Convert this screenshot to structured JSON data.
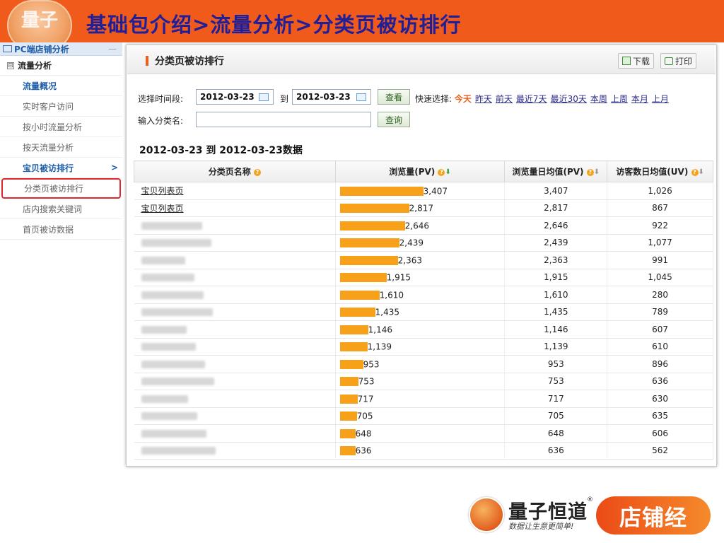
{
  "banner": {
    "title": "基础包介绍>流量分析>分类页被访排行",
    "logo_text": "量子"
  },
  "sidebar": {
    "head": "PC端店铺分析",
    "head_toggle": "—",
    "group": "流量分析",
    "group_toggle": "⊟",
    "items": [
      {
        "label": "流量概况",
        "style": "blue"
      },
      {
        "label": "实时客户访问",
        "style": ""
      },
      {
        "label": "按小时流量分析",
        "style": ""
      },
      {
        "label": "按天流量分析",
        "style": ""
      },
      {
        "label": "宝贝被访排行",
        "style": "blue",
        "arrow": ">"
      },
      {
        "label": "分类页被访排行",
        "style": "hl"
      },
      {
        "label": "店内搜索关键词",
        "style": ""
      },
      {
        "label": "首页被访数据",
        "style": ""
      }
    ]
  },
  "panel": {
    "title": "分类页被访排行",
    "download_label": "下载",
    "print_label": "打印",
    "time_label": "选择时间段:",
    "date_from": "2012-03-23",
    "to_label": "到",
    "date_to": "2012-03-23",
    "view_button": "查看",
    "quick_label": "快速选择:",
    "quick": [
      "今天",
      "昨天",
      "前天",
      "最近7天",
      "最近30天",
      "本周",
      "上周",
      "本月",
      "上月"
    ],
    "category_label": "输入分类名:",
    "category_value": "",
    "query_button": "查询",
    "subtitle": "2012-03-23 到  2012-03-23数据",
    "columns": [
      "分类页名称",
      "浏览量(PV)",
      "浏览量日均值(PV)",
      "访客数日均值(UV)"
    ],
    "rows": [
      {
        "name": "宝贝列表页",
        "visible": true,
        "pv": 3407,
        "pv_text": "3,407",
        "avg_pv": "3,407",
        "uv": "1,026"
      },
      {
        "name": "宝贝列表页",
        "visible": true,
        "pv": 2817,
        "pv_text": "2,817",
        "avg_pv": "2,817",
        "uv": "867"
      },
      {
        "name": "",
        "visible": false,
        "pv": 2646,
        "pv_text": "2,646",
        "avg_pv": "2,646",
        "uv": "922"
      },
      {
        "name": "",
        "visible": false,
        "pv": 2439,
        "pv_text": "2,439",
        "avg_pv": "2,439",
        "uv": "1,077"
      },
      {
        "name": "",
        "visible": false,
        "pv": 2363,
        "pv_text": "2,363",
        "avg_pv": "2,363",
        "uv": "991"
      },
      {
        "name": "",
        "visible": false,
        "pv": 1915,
        "pv_text": "1,915",
        "avg_pv": "1,915",
        "uv": "1,045"
      },
      {
        "name": "",
        "visible": false,
        "pv": 1610,
        "pv_text": "1,610",
        "avg_pv": "1,610",
        "uv": "280"
      },
      {
        "name": "",
        "visible": false,
        "pv": 1435,
        "pv_text": "1,435",
        "avg_pv": "1,435",
        "uv": "789"
      },
      {
        "name": "",
        "visible": false,
        "pv": 1146,
        "pv_text": "1,146",
        "avg_pv": "1,146",
        "uv": "607"
      },
      {
        "name": "",
        "visible": false,
        "pv": 1139,
        "pv_text": "1,139",
        "avg_pv": "1,139",
        "uv": "610"
      },
      {
        "name": "",
        "visible": false,
        "pv": 953,
        "pv_text": "953",
        "avg_pv": "953",
        "uv": "896"
      },
      {
        "name": "",
        "visible": false,
        "pv": 753,
        "pv_text": "753",
        "avg_pv": "753",
        "uv": "636"
      },
      {
        "name": "",
        "visible": false,
        "pv": 717,
        "pv_text": "717",
        "avg_pv": "717",
        "uv": "630"
      },
      {
        "name": "",
        "visible": false,
        "pv": 705,
        "pv_text": "705",
        "avg_pv": "705",
        "uv": "635"
      },
      {
        "name": "",
        "visible": false,
        "pv": 648,
        "pv_text": "648",
        "avg_pv": "648",
        "uv": "606"
      },
      {
        "name": "",
        "visible": false,
        "pv": 636,
        "pv_text": "636",
        "avg_pv": "636",
        "uv": "562"
      }
    ]
  },
  "brand": {
    "name": "量子恒道",
    "reg": "®",
    "slogan": "数据让生意更简单!",
    "product": "店铺经"
  },
  "colors": {
    "banner": "#f05a1a",
    "title": "#1f1f9a",
    "bar": "#f7a11a",
    "highlight": "#e0262a"
  }
}
